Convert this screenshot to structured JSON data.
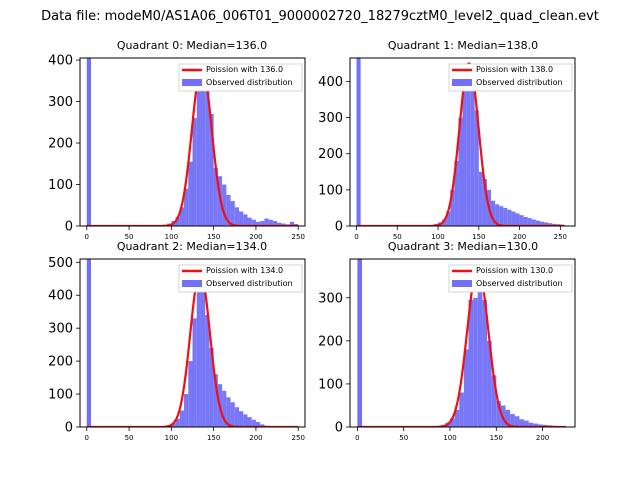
{
  "figure": {
    "title": "Data file: modeM0/AS1A06_006T01_9000002720_18279cztM0_level2_quad_clean.evt"
  },
  "colors": {
    "hist": "#7070f8",
    "hist_edge": "#5a5af0",
    "line": "#ee1111",
    "spike": "#7070f8"
  },
  "chart_data": [
    {
      "type": "bar",
      "title": "Quadrant 0: Median=136.0",
      "median": 136.0,
      "xlim": [
        -8,
        258
      ],
      "ylim": [
        0,
        405
      ],
      "xticks": [
        0,
        50,
        100,
        150,
        200,
        250
      ],
      "yticks": [
        0,
        100,
        200,
        300,
        400
      ],
      "bin_width": 5,
      "spike": {
        "x": 0,
        "width": 5,
        "height": 405
      },
      "bins": [
        [
          90,
          3
        ],
        [
          95,
          6
        ],
        [
          100,
          12
        ],
        [
          105,
          22
        ],
        [
          110,
          45
        ],
        [
          115,
          90
        ],
        [
          120,
          155
        ],
        [
          125,
          260
        ],
        [
          130,
          340
        ],
        [
          135,
          390
        ],
        [
          140,
          340
        ],
        [
          145,
          270
        ],
        [
          150,
          140
        ],
        [
          155,
          120
        ],
        [
          160,
          100
        ],
        [
          165,
          75
        ],
        [
          170,
          60
        ],
        [
          175,
          45
        ],
        [
          180,
          35
        ],
        [
          185,
          28
        ],
        [
          190,
          20
        ],
        [
          195,
          15
        ],
        [
          200,
          10
        ],
        [
          205,
          12
        ],
        [
          210,
          18
        ],
        [
          215,
          15
        ],
        [
          220,
          12
        ],
        [
          225,
          8
        ],
        [
          230,
          6
        ],
        [
          235,
          4
        ],
        [
          240,
          10
        ],
        [
          245,
          5
        ]
      ],
      "poisson": {
        "mean": 136.0,
        "peak": 385,
        "sigma": 11.7,
        "x_range": [
          0,
          250
        ]
      },
      "legend": [
        "Poission with 136.0",
        "Observed distribution"
      ]
    },
    {
      "type": "bar",
      "title": "Quadrant 1: Median=138.0",
      "median": 138.0,
      "xlim": [
        -8,
        268
      ],
      "ylim": [
        0,
        465
      ],
      "xticks": [
        0,
        50,
        100,
        150,
        200,
        250
      ],
      "yticks": [
        0,
        100,
        200,
        300,
        400
      ],
      "bin_width": 5,
      "spike": {
        "x": 0,
        "width": 5,
        "height": 465
      },
      "bins": [
        [
          90,
          3
        ],
        [
          95,
          6
        ],
        [
          100,
          10
        ],
        [
          105,
          18
        ],
        [
          110,
          40
        ],
        [
          115,
          100
        ],
        [
          120,
          180
        ],
        [
          125,
          300
        ],
        [
          130,
          380
        ],
        [
          135,
          450
        ],
        [
          140,
          440
        ],
        [
          145,
          320
        ],
        [
          150,
          150
        ],
        [
          155,
          130
        ],
        [
          160,
          100
        ],
        [
          165,
          70
        ],
        [
          170,
          60
        ],
        [
          175,
          55
        ],
        [
          180,
          50
        ],
        [
          185,
          45
        ],
        [
          190,
          40
        ],
        [
          195,
          35
        ],
        [
          200,
          30
        ],
        [
          205,
          25
        ],
        [
          210,
          22
        ],
        [
          215,
          18
        ],
        [
          220,
          15
        ],
        [
          225,
          12
        ],
        [
          230,
          10
        ],
        [
          235,
          8
        ],
        [
          240,
          6
        ],
        [
          245,
          5
        ],
        [
          250,
          4
        ]
      ],
      "poisson": {
        "mean": 138.0,
        "peak": 450,
        "sigma": 11.7,
        "x_range": [
          0,
          255
        ]
      },
      "legend": [
        "Poission with 138.0",
        "Observed distribution"
      ]
    },
    {
      "type": "bar",
      "title": "Quadrant 2: Median=134.0",
      "median": 134.0,
      "xlim": [
        -8,
        258
      ],
      "ylim": [
        0,
        510
      ],
      "xticks": [
        0,
        50,
        100,
        150,
        200,
        250
      ],
      "yticks": [
        0,
        100,
        200,
        300,
        400,
        500
      ],
      "bin_width": 5,
      "spike": {
        "x": 0,
        "width": 5,
        "height": 510
      },
      "bins": [
        [
          90,
          3
        ],
        [
          95,
          6
        ],
        [
          100,
          12
        ],
        [
          105,
          25
        ],
        [
          110,
          50
        ],
        [
          115,
          100
        ],
        [
          120,
          200
        ],
        [
          125,
          330
        ],
        [
          130,
          440
        ],
        [
          135,
          480
        ],
        [
          140,
          340
        ],
        [
          145,
          240
        ],
        [
          150,
          160
        ],
        [
          155,
          130
        ],
        [
          160,
          110
        ],
        [
          165,
          90
        ],
        [
          170,
          75
        ],
        [
          175,
          60
        ],
        [
          180,
          48
        ],
        [
          185,
          38
        ],
        [
          190,
          30
        ],
        [
          195,
          22
        ],
        [
          200,
          15
        ],
        [
          205,
          8
        ],
        [
          210,
          4
        ]
      ],
      "poisson": {
        "mean": 134.0,
        "peak": 470,
        "sigma": 11.6,
        "x_range": [
          0,
          250
        ]
      },
      "legend": [
        "Poission with 134.0",
        "Observed distribution"
      ]
    },
    {
      "type": "bar",
      "title": "Quadrant 3: Median=130.0",
      "median": 130.0,
      "xlim": [
        -8,
        235
      ],
      "ylim": [
        0,
        390
      ],
      "xticks": [
        0,
        50,
        100,
        150,
        200
      ],
      "yticks": [
        0,
        100,
        200,
        300
      ],
      "bin_width": 5,
      "spike": {
        "x": 0,
        "width": 5,
        "height": 390
      },
      "bins": [
        [
          85,
          2
        ],
        [
          90,
          5
        ],
        [
          95,
          10
        ],
        [
          100,
          20
        ],
        [
          105,
          40
        ],
        [
          110,
          80
        ],
        [
          115,
          180
        ],
        [
          120,
          295
        ],
        [
          125,
          300
        ],
        [
          130,
          370
        ],
        [
          135,
          295
        ],
        [
          140,
          200
        ],
        [
          145,
          120
        ],
        [
          150,
          60
        ],
        [
          155,
          50
        ],
        [
          160,
          40
        ],
        [
          165,
          30
        ],
        [
          170,
          25
        ],
        [
          175,
          18
        ],
        [
          180,
          15
        ],
        [
          185,
          10
        ],
        [
          190,
          8
        ],
        [
          195,
          6
        ],
        [
          200,
          5
        ],
        [
          205,
          4
        ],
        [
          210,
          3
        ],
        [
          215,
          2
        ],
        [
          220,
          2
        ]
      ],
      "poisson": {
        "mean": 130.0,
        "peak": 370,
        "sigma": 11.4,
        "x_range": [
          0,
          225
        ]
      },
      "legend": [
        "Poission with 130.0",
        "Observed distribution"
      ]
    }
  ]
}
